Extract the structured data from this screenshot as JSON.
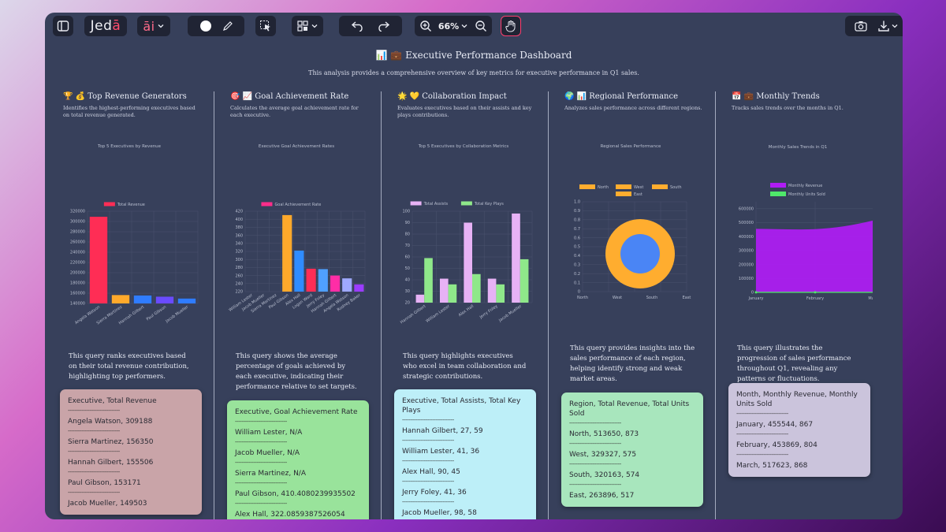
{
  "toolbar": {
    "logo_text": "Jed",
    "logo_accent": "ā",
    "ai_label": "āi",
    "zoom": "66%"
  },
  "dashboard": {
    "title": "📊 💼 Executive Performance Dashboard",
    "subtitle": "This analysis provides a comprehensive overview of key metrics for executive performance in Q1 sales."
  },
  "sections": [
    {
      "title": "🏆 💰 Top Revenue Generators",
      "desc": "Identifies the highest-performing executives based on total revenue generated.",
      "query_text": "This query ranks executives based on their total revenue contribution, highlighting top performers.",
      "card": {
        "header": "Executive, Total Revenue",
        "separator": "-------------------------------",
        "rows": [
          "Angela Watson, 309188",
          "Sierra Martinez, 156350",
          "Hannah Gilbert, 155506",
          "Paul Gibson, 153171",
          "Jacob Mueller, 149503"
        ]
      }
    },
    {
      "title": "🎯 📈 Goal Achievement Rate",
      "desc": "Calculates the average goal achievement rate for each executive.",
      "query_text": "This query shows the average percentage of goals achieved by each executive, indicating their performance relative to set targets.",
      "card": {
        "header": "Executive, Goal Achievement Rate",
        "separator": "-------------------------------",
        "rows": [
          "William Lester, N/A",
          "Jacob Mueller, N/A",
          "Sierra Martinez, N/A",
          "Paul Gibson, 410.4080239935502",
          "Alex Hall, 322.0859387526054"
        ]
      }
    },
    {
      "title": "🌟 💛 Collaboration Impact",
      "desc": "Evaluates executives based on their assists and key plays contributions.",
      "query_text": "This query highlights executives who excel in team collaboration and strategic contributions.",
      "card": {
        "header": "Executive, Total Assists, Total Key Plays",
        "separator": "-------------------------------",
        "rows": [
          "Hannah Gilbert, 27, 59",
          "William Lester, 41, 36",
          "Alex Hall, 90, 45",
          "Jerry Foley, 41, 36",
          "Jacob Mueller, 98, 58"
        ]
      }
    },
    {
      "title": "🌍 📊 Regional Performance",
      "desc": "Analyzes sales performance across different regions.",
      "query_text": "This query provides insights into the sales performance of each region, helping identify strong and weak market areas.",
      "card": {
        "header": "Region, Total Revenue, Total Units Sold",
        "separator": "-------------------------------",
        "rows": [
          "North, 513650, 873",
          "West, 329327, 575",
          "South, 320163, 574",
          "East, 263896, 517"
        ]
      }
    },
    {
      "title": "📅 💼 Monthly Trends",
      "desc": "Tracks sales trends over the months in Q1.",
      "query_text": "This query illustrates the progression of sales performance throughout Q1, revealing any patterns or fluctuations.",
      "card": {
        "header": "Month, Monthly Revenue, Monthly Units Sold",
        "separator": "-------------------------------",
        "rows": [
          "January, 455544, 867",
          "February, 453869, 804",
          "March, 517623, 868"
        ]
      }
    }
  ],
  "chart_data": [
    {
      "type": "bar",
      "title": "Top 5 Executives by Revenue",
      "categories": [
        "Angela Watson",
        "Sierra Martinez",
        "Hannah Gilbert",
        "Paul Gibson",
        "Jacob Mueller"
      ],
      "series": [
        {
          "name": "Total Revenue",
          "values": [
            309188,
            156350,
            155506,
            153171,
            149503
          ]
        }
      ],
      "colors": [
        "#ff2d55",
        "#ffa92b",
        "#2f7cff",
        "#6a4bff",
        "#2f7cff"
      ],
      "legend_color": "#ff2d55",
      "ylim": [
        140000,
        320000
      ],
      "yticks": [
        140000,
        160000,
        180000,
        200000,
        220000,
        240000,
        260000,
        280000,
        300000,
        320000
      ]
    },
    {
      "type": "bar",
      "title": "Executive Goal Achievement Rates",
      "categories": [
        "William Lester",
        "Jacob Mueller",
        "Sierra Martinez",
        "Paul Gibson",
        "Alex Hall",
        "Logan Ward",
        "Jerry Foley",
        "Hannah Gilbert",
        "Angela Watson",
        "Rodney Baker"
      ],
      "series": [
        {
          "name": "Goal Achievement Rate",
          "values": [
            null,
            null,
            null,
            410.4,
            322.1,
            277,
            276,
            260,
            253,
            238
          ]
        }
      ],
      "colors": [
        "#ff2d8a",
        "#ff2d8a",
        "#ff2d8a",
        "#ffa92b",
        "#2f8cff",
        "#ff2d55",
        "#4fa0ff",
        "#ff2da6",
        "#9fa9ff",
        "#9b3cff"
      ],
      "legend_color": "#ff2d8a",
      "ylim": [
        220,
        420
      ],
      "yticks": [
        220,
        240,
        260,
        280,
        300,
        320,
        340,
        360,
        380,
        400,
        420
      ]
    },
    {
      "type": "bar",
      "title": "Top 5 Executives by Collaboration Metrics",
      "categories": [
        "Hannah Gilbert",
        "William Lester",
        "Alex Hall",
        "Jerry Foley",
        "Jacob Mueller"
      ],
      "series": [
        {
          "name": "Total Assists",
          "values": [
            27,
            41,
            90,
            41,
            98
          ],
          "color": "#e7b2f5"
        },
        {
          "name": "Total Key Plays",
          "values": [
            59,
            36,
            45,
            36,
            58
          ],
          "color": "#8fe88a"
        }
      ],
      "ylim": [
        20,
        100
      ],
      "yticks": [
        20,
        30,
        40,
        50,
        60,
        70,
        80,
        90,
        100
      ]
    },
    {
      "type": "pie",
      "title": "Regional Sales Performance",
      "categories": [
        "North",
        "West",
        "South",
        "East"
      ],
      "values": [
        513650,
        329327,
        320163,
        263896
      ],
      "ring_color": "#ffad2f",
      "center_color": "#4a85f5",
      "yticks": [
        "0",
        "0.1",
        "0.2",
        "0.3",
        "0.4",
        "0.5",
        "0.6",
        "0.7",
        "0.8",
        "0.9",
        "1.0"
      ],
      "xticks": [
        "North",
        "West",
        "South",
        "East"
      ]
    },
    {
      "type": "area",
      "title": "Monthly Sales Trends in Q1",
      "categories": [
        "January",
        "February",
        "March"
      ],
      "series": [
        {
          "name": "Monthly Revenue",
          "values": [
            455544,
            453869,
            517623
          ],
          "color": "#b01cf5"
        },
        {
          "name": "Monthly Units Sold",
          "values": [
            867,
            804,
            868
          ],
          "color": "#4fe86a"
        }
      ],
      "ylim": [
        0,
        650000
      ],
      "yticks": [
        "0",
        "100000",
        "200000",
        "300000",
        "400000",
        "500000",
        "600000"
      ]
    }
  ],
  "colors": {
    "window_bg": "#37405b",
    "card_1": "#c9a4a8",
    "card_2": "#99e39b",
    "card_3": "#bdeff8",
    "card_4": "#a8e6bd",
    "card_5": "#cbc4dc"
  }
}
